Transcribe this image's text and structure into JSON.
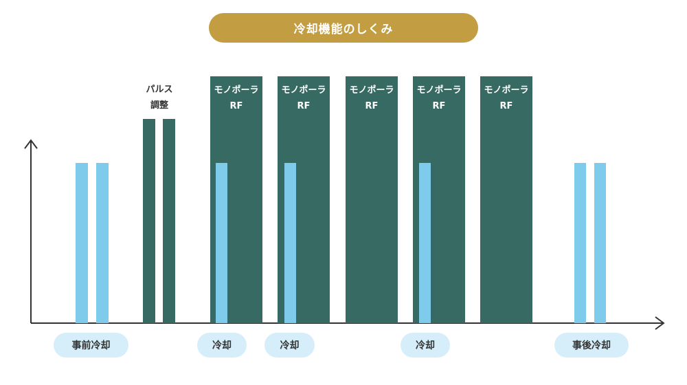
{
  "header": {
    "title": "冷却機能のしくみ"
  },
  "pulse_adjust": {
    "line1": "パルス",
    "line2": "調整"
  },
  "mono_blocks": [
    {
      "line1": "モノポーラ",
      "line2": "RF"
    },
    {
      "line1": "モノポーラ",
      "line2": "RF"
    },
    {
      "line1": "モノポーラ",
      "line2": "RF"
    },
    {
      "line1": "モノポーラ",
      "line2": "RF"
    },
    {
      "line1": "モノポーラ",
      "line2": "RF"
    }
  ],
  "tags": [
    {
      "label": "事前冷却"
    },
    {
      "label": "冷却"
    },
    {
      "label": "冷却"
    },
    {
      "label": "冷却"
    },
    {
      "label": "事後冷却"
    }
  ],
  "colors": {
    "title_bg": "#c39d42",
    "rf_block": "#386a64",
    "cooling_bar": "#7ecbec",
    "tag_bg": "#d6eef9"
  }
}
